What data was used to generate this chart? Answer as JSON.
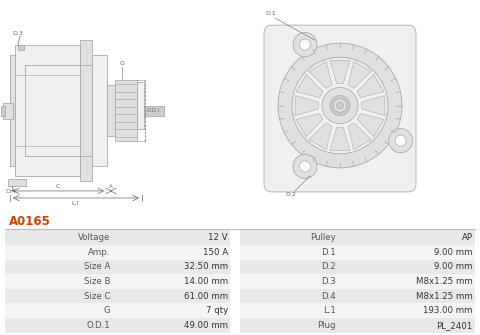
{
  "title": "A0165",
  "title_color": "#cc4400",
  "table_headers_left": [
    "Voltage",
    "Amp.",
    "Size A",
    "Size B",
    "Size C",
    "G",
    "O.D.1"
  ],
  "table_values_left": [
    "12 V",
    "150 A",
    "32.50 mm",
    "14.00 mm",
    "61.00 mm",
    "7 qty",
    "49.00 mm"
  ],
  "table_headers_right": [
    "Pulley",
    "D.1",
    "D.2",
    "D.3",
    "D.4",
    "L.1",
    "Plug"
  ],
  "table_values_right": [
    "AP",
    "9.00 mm",
    "9.00 mm",
    "M8x1.25 mm",
    "M8x1.25 mm",
    "193.00 mm",
    "PL_2401"
  ],
  "bg_color": "#ffffff",
  "row_color_odd": "#e8e8e8",
  "row_color_even": "#f4f4f4",
  "label_color": "#666666",
  "edge_color": "#aaaaaa",
  "face_light": "#f0f0f0",
  "face_mid": "#e0e0e0",
  "face_dark": "#cccccc"
}
